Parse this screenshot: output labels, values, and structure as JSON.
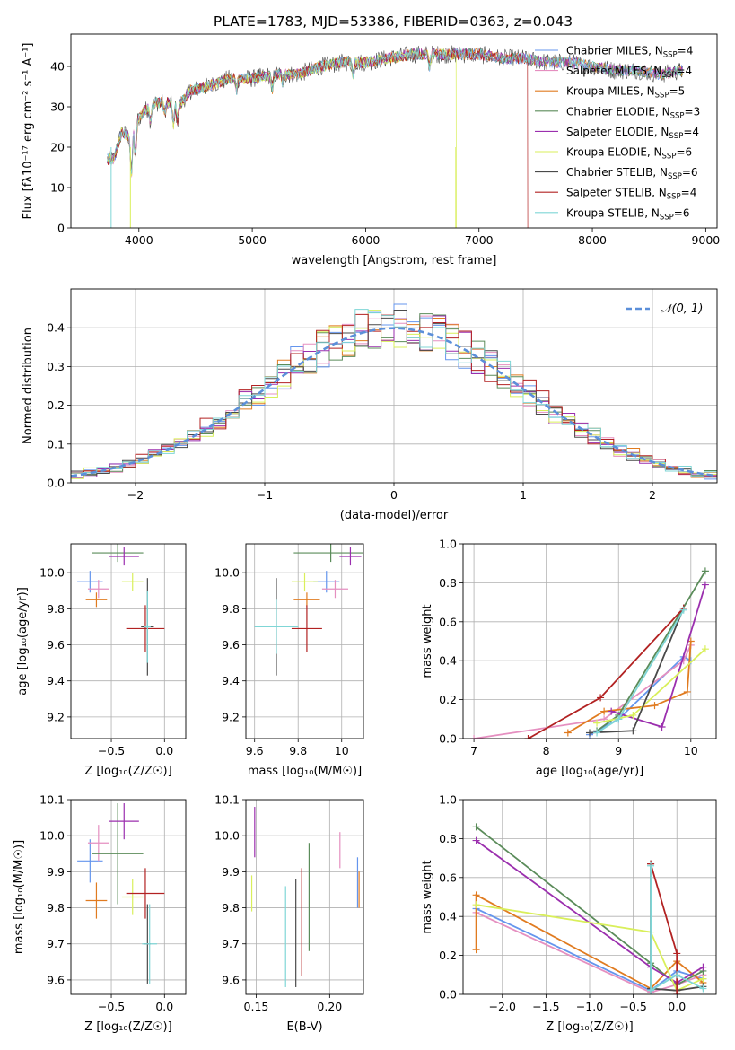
{
  "figure_title": "PLATE=1783, MJD=53386, FIBERID=0363, z=0.043",
  "series_colors": [
    "#6495ed",
    "#e58fc0",
    "#e07b20",
    "#5b8c5a",
    "#9b2fae",
    "#d9ef5b",
    "#4a4a4a",
    "#b22222",
    "#7fd6d6"
  ],
  "chart_data": [
    {
      "id": "spectrum",
      "type": "line",
      "xlabel": "wavelength [Angstrom, rest frame]",
      "ylabel": "Flux [fλ10⁻¹⁷ erg cm⁻² s⁻¹ A⁻¹]",
      "xlim": [
        3400,
        9100
      ],
      "ylim": [
        0,
        48
      ],
      "xticks": [
        4000,
        5000,
        6000,
        7000,
        8000,
        9000
      ],
      "yticks": [
        0,
        10,
        20,
        30,
        40
      ],
      "grid": false,
      "legend_position": "upper-right",
      "x": [
        3720,
        3780,
        3850,
        3930,
        3970,
        4050,
        4150,
        4250,
        4350,
        4450,
        4600,
        4800,
        5000,
        5200,
        5400,
        5600,
        5800,
        6000,
        6200,
        6400,
        6600,
        6800,
        7000,
        7200,
        7400,
        7600,
        7800,
        8000,
        8200,
        8400,
        8600,
        8800
      ],
      "y": [
        17,
        17,
        24,
        22,
        26,
        29,
        31,
        31,
        30,
        34,
        35,
        37,
        37,
        38,
        38,
        40,
        41,
        41,
        42,
        43,
        43,
        43,
        43,
        42,
        42,
        41,
        41,
        40,
        39,
        39,
        38,
        39
      ],
      "series": [
        {
          "name": "Chabrier MILES, N_SSP=4"
        },
        {
          "name": "Salpeter MILES, N_SSP=4"
        },
        {
          "name": "Kroupa MILES, N_SSP=5"
        },
        {
          "name": "Chabrier ELODIE, N_SSP=3"
        },
        {
          "name": "Salpeter ELODIE, N_SSP=4"
        },
        {
          "name": "Kroupa ELODIE, N_SSP=6"
        },
        {
          "name": "Chabrier STELIB, N_SSP=6"
        },
        {
          "name": "Salpeter STELIB, N_SSP=4"
        },
        {
          "name": "Kroupa STELIB, N_SSP=6"
        }
      ],
      "legend_entries": [
        {
          "base": "Chabrier MILES, N",
          "sub": "SSP",
          "tail": "=4"
        },
        {
          "base": "Salpeter MILES, N",
          "sub": "SSP",
          "tail": "=4"
        },
        {
          "base": "Kroupa MILES, N",
          "sub": "SSP",
          "tail": "=5"
        },
        {
          "base": "Chabrier ELODIE, N",
          "sub": "SSP",
          "tail": "=3"
        },
        {
          "base": "Salpeter ELODIE, N",
          "sub": "SSP",
          "tail": "=4"
        },
        {
          "base": "Kroupa ELODIE, N",
          "sub": "SSP",
          "tail": "=6"
        },
        {
          "base": "Chabrier STELIB, N",
          "sub": "SSP",
          "tail": "=6"
        },
        {
          "base": "Salpeter STELIB, N",
          "sub": "SSP",
          "tail": "=4"
        },
        {
          "base": "Kroupa STELIB, N",
          "sub": "SSP",
          "tail": "=6"
        }
      ],
      "spectrum_ends": [
        {
          "series": 7,
          "x_end": 7430
        },
        {
          "series": 5,
          "x_end": 6800
        }
      ]
    },
    {
      "id": "residuals",
      "type": "histogram",
      "xlabel": "(data-model)/error",
      "ylabel": "Normed distribution",
      "xlim": [
        -2.5,
        2.5
      ],
      "ylim": [
        0,
        0.5
      ],
      "xticks": [
        -2,
        -1,
        0,
        1,
        2
      ],
      "yticks": [
        0,
        0.1,
        0.2,
        0.3,
        0.4
      ],
      "grid": true,
      "legend_position": "upper-right",
      "legend_label": "𝒩(0, 1)",
      "bin_width": 0.1,
      "reference_curve": {
        "type": "normal",
        "mean": 0,
        "sigma": 1
      }
    },
    {
      "id": "age-vs-Z",
      "type": "errorbar",
      "xlabel": "Z [log₁₀(Z/Z☉)]",
      "ylabel": "age  [log₁₀(age/yr)]",
      "xlim": [
        -0.88,
        0.2
      ],
      "ylim": [
        9.08,
        10.16
      ],
      "xticks": [
        -0.5,
        0.0
      ],
      "xtick_labels": [
        "−0.5",
        "0.0"
      ],
      "yticks": [
        9.2,
        9.4,
        9.6,
        9.8,
        10.0
      ],
      "grid": true,
      "points": [
        {
          "x": -0.7,
          "y": 9.95,
          "xerr": 0.12,
          "yerr": 0.06
        },
        {
          "x": -0.62,
          "y": 9.91,
          "xerr": 0.1,
          "yerr": 0.05
        },
        {
          "x": -0.64,
          "y": 9.85,
          "xerr": 0.1,
          "yerr": 0.04
        },
        {
          "x": -0.44,
          "y": 10.11,
          "xerr": 0.24,
          "yerr": 0.05
        },
        {
          "x": -0.38,
          "y": 10.09,
          "xerr": 0.14,
          "yerr": 0.05
        },
        {
          "x": -0.3,
          "y": 9.95,
          "xerr": 0.1,
          "yerr": 0.05
        },
        {
          "x": -0.16,
          "y": 9.7,
          "xerr": 0.06,
          "yerr": 0.27
        },
        {
          "x": -0.18,
          "y": 9.69,
          "xerr": 0.18,
          "yerr": 0.13
        },
        {
          "x": -0.16,
          "y": 9.7,
          "xerr": 0.03,
          "yerr": 0.2
        }
      ]
    },
    {
      "id": "age-vs-mass",
      "type": "errorbar",
      "xlabel": "mass [log₁₀(M/M☉)]",
      "xlim": [
        9.56,
        10.1
      ],
      "ylim": [
        9.08,
        10.16
      ],
      "xticks": [
        9.6,
        9.8,
        10.0
      ],
      "yticks": [
        9.2,
        9.4,
        9.6,
        9.8,
        10.0
      ],
      "grid": true,
      "points": [
        {
          "x": 9.93,
          "y": 9.95,
          "xerr": 0.06,
          "yerr": 0.06
        },
        {
          "x": 9.97,
          "y": 9.91,
          "xerr": 0.06,
          "yerr": 0.05
        },
        {
          "x": 9.84,
          "y": 9.85,
          "xerr": 0.06,
          "yerr": 0.04
        },
        {
          "x": 9.95,
          "y": 10.11,
          "xerr": 0.17,
          "yerr": 0.05
        },
        {
          "x": 10.04,
          "y": 10.09,
          "xerr": 0.05,
          "yerr": 0.05
        },
        {
          "x": 9.83,
          "y": 9.95,
          "xerr": 0.06,
          "yerr": 0.05
        },
        {
          "x": 9.7,
          "y": 9.7,
          "xerr": 0.1,
          "yerr": 0.27
        },
        {
          "x": 9.84,
          "y": 9.69,
          "xerr": 0.07,
          "yerr": 0.13
        },
        {
          "x": 9.7,
          "y": 9.7,
          "xerr": 0.1,
          "yerr": 0.15
        }
      ]
    },
    {
      "id": "mass-weight-vs-age",
      "type": "line",
      "xlabel": "age  [log₁₀(age/yr)]",
      "ylabel": "mass weight",
      "xlim": [
        6.85,
        10.35
      ],
      "ylim": [
        0,
        1
      ],
      "xticks": [
        7,
        8,
        9,
        10
      ],
      "yticks": [
        0,
        0.2,
        0.4,
        0.6,
        0.8,
        1.0
      ],
      "grid": true,
      "series": [
        {
          "x": [
            8.6,
            9.0,
            9.9,
            10.0
          ],
          "y": [
            0.02,
            0.1,
            0.42,
            0.4
          ]
        },
        {
          "x": [
            7.0,
            8.8,
            9.9,
            10.0
          ],
          "y": [
            0.0,
            0.1,
            0.4,
            0.48
          ]
        },
        {
          "x": [
            8.3,
            8.8,
            9.5,
            9.95,
            10.0
          ],
          "y": [
            0.03,
            0.14,
            0.17,
            0.24,
            0.5
          ]
        },
        {
          "x": [
            8.7,
            9.0,
            10.2
          ],
          "y": [
            0.04,
            0.12,
            0.86
          ]
        },
        {
          "x": [
            8.9,
            9.6,
            10.2
          ],
          "y": [
            0.14,
            0.06,
            0.79
          ]
        },
        {
          "x": [
            8.7,
            9.2,
            10.2
          ],
          "y": [
            0.08,
            0.12,
            0.46
          ]
        },
        {
          "x": [
            8.6,
            9.2,
            9.9
          ],
          "y": [
            0.03,
            0.04,
            0.67
          ]
        },
        {
          "x": [
            7.75,
            8.75,
            9.9
          ],
          "y": [
            0.0,
            0.21,
            0.67
          ]
        },
        {
          "x": [
            8.7,
            9.0,
            9.9
          ],
          "y": [
            0.03,
            0.1,
            0.66
          ]
        }
      ]
    },
    {
      "id": "mass-vs-Z",
      "type": "errorbar",
      "xlabel": "Z [log₁₀(Z/Z☉)]",
      "ylabel": "mass [log₁₀(M/M☉)]",
      "xlim": [
        -0.88,
        0.2
      ],
      "ylim": [
        9.56,
        10.1
      ],
      "xticks": [
        -0.5,
        0.0
      ],
      "xtick_labels": [
        "−0.5",
        "0.0"
      ],
      "yticks": [
        9.6,
        9.7,
        9.8,
        9.9,
        10.0,
        10.1
      ],
      "grid": true,
      "points": [
        {
          "x": -0.7,
          "y": 9.93,
          "xerr": 0.12,
          "yerr": 0.06
        },
        {
          "x": -0.62,
          "y": 9.98,
          "xerr": 0.1,
          "yerr": 0.05
        },
        {
          "x": -0.64,
          "y": 9.82,
          "xerr": 0.1,
          "yerr": 0.05
        },
        {
          "x": -0.44,
          "y": 9.95,
          "xerr": 0.24,
          "yerr": 0.14
        },
        {
          "x": -0.38,
          "y": 10.04,
          "xerr": 0.14,
          "yerr": 0.05
        },
        {
          "x": -0.3,
          "y": 9.83,
          "xerr": 0.1,
          "yerr": 0.05
        },
        {
          "x": -0.16,
          "y": 9.7,
          "xerr": 0.03,
          "yerr": 0.11
        },
        {
          "x": -0.18,
          "y": 9.84,
          "xerr": 0.18,
          "yerr": 0.07
        },
        {
          "x": -0.14,
          "y": 9.7,
          "xerr": 0.07,
          "yerr": 0.11
        }
      ]
    },
    {
      "id": "mass-vs-EBV",
      "type": "errorbar",
      "xlabel": "E(B-V)",
      "xlim": [
        0.143,
        0.223
      ],
      "ylim": [
        9.56,
        10.1
      ],
      "xticks": [
        0.15,
        0.2
      ],
      "xtick_labels": [
        "0.15",
        "0.20"
      ],
      "yticks": [
        9.6,
        9.7,
        9.8,
        9.9,
        10.0,
        10.1
      ],
      "grid": true,
      "points": [
        {
          "x": 0.219,
          "y": 9.87,
          "xerr": 0,
          "yerr": 0.07
        },
        {
          "x": 0.207,
          "y": 9.96,
          "xerr": 0,
          "yerr": 0.05
        },
        {
          "x": 0.22,
          "y": 9.85,
          "xerr": 0,
          "yerr": 0.05
        },
        {
          "x": 0.186,
          "y": 9.83,
          "xerr": 0,
          "yerr": 0.15
        },
        {
          "x": 0.149,
          "y": 10.01,
          "xerr": 0,
          "yerr": 0.07
        },
        {
          "x": 0.147,
          "y": 9.84,
          "xerr": 0,
          "yerr": 0.05
        },
        {
          "x": 0.177,
          "y": 9.73,
          "xerr": 0,
          "yerr": 0.15
        },
        {
          "x": 0.181,
          "y": 9.76,
          "xerr": 0,
          "yerr": 0.15
        },
        {
          "x": 0.17,
          "y": 9.72,
          "xerr": 0,
          "yerr": 0.14
        }
      ]
    },
    {
      "id": "mass-weight-vs-Z",
      "type": "line",
      "xlabel": "Z [log₁₀(Z/Z☉)]",
      "ylabel": "mass weight",
      "xlim": [
        -2.45,
        0.45
      ],
      "ylim": [
        0,
        1
      ],
      "xticks": [
        -2.0,
        -1.5,
        -1.0,
        -0.5,
        0.0
      ],
      "xtick_labels": [
        "−2.0",
        "−1.5",
        "−1.0",
        "−0.5",
        "0.0"
      ],
      "yticks": [
        0,
        0.2,
        0.4,
        0.6,
        0.8,
        1.0
      ],
      "grid": true,
      "series": [
        {
          "x": [
            -2.3,
            -0.3,
            0.0,
            0.3
          ],
          "y": [
            0.44,
            0.02,
            0.12,
            0.08
          ]
        },
        {
          "x": [
            -2.3,
            -0.3,
            0.0,
            0.3
          ],
          "y": [
            0.42,
            0.01,
            0.05,
            0.1
          ]
        },
        {
          "x": [
            -2.3,
            -2.3,
            -0.3,
            0.0,
            0.3
          ],
          "y": [
            0.23,
            0.51,
            0.03,
            0.17,
            0.06
          ]
        },
        {
          "x": [
            -2.3,
            -0.3,
            0.0,
            0.3
          ],
          "y": [
            0.86,
            0.16,
            0.05,
            0.12
          ]
        },
        {
          "x": [
            -2.3,
            -0.3,
            0.0,
            0.3
          ],
          "y": [
            0.79,
            0.14,
            0.06,
            0.14
          ]
        },
        {
          "x": [
            -2.3,
            -0.3,
            0.0,
            0.3
          ],
          "y": [
            0.46,
            0.32,
            0.02,
            0.08
          ]
        },
        {
          "x": [
            -0.3,
            -0.3,
            0.0,
            0.3
          ],
          "y": [
            0.67,
            0.03,
            0.02,
            0.04
          ]
        },
        {
          "x": [
            -0.3,
            0.0,
            0.0
          ],
          "y": [
            0.67,
            0.21,
            0.0
          ]
        },
        {
          "x": [
            -0.3,
            -0.3,
            0.0,
            0.3
          ],
          "y": [
            0.66,
            0.02,
            0.1,
            0.03
          ]
        }
      ]
    }
  ]
}
